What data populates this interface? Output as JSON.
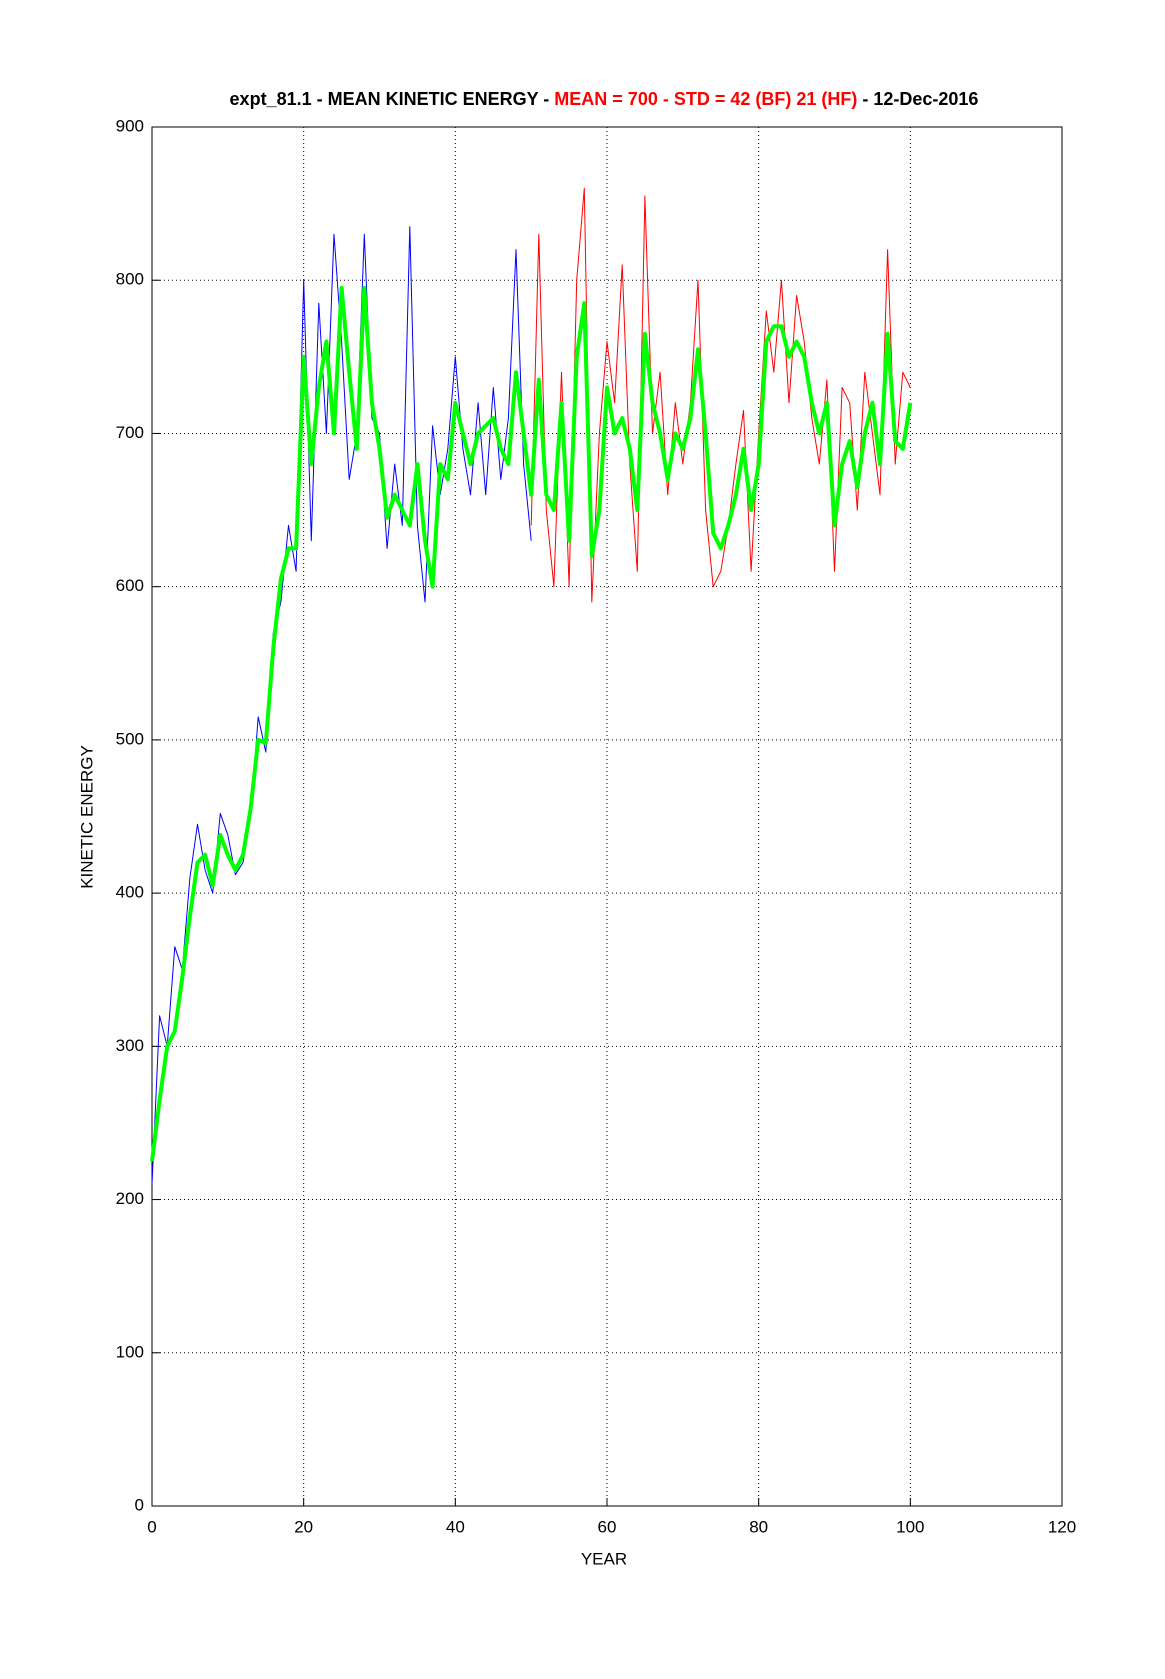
{
  "chart_data": {
    "type": "line",
    "title_parts": [
      {
        "text": "expt_81.1 - MEAN KINETIC ENERGY - ",
        "color": "#000000"
      },
      {
        "text": "MEAN =   700 - STD =   42 (BF)   21 (HF)",
        "color": "#ff0000"
      },
      {
        "text": " - 12-Dec-2016",
        "color": "#000000"
      }
    ],
    "x_label": "YEAR",
    "y_label": "KINETIC ENERGY",
    "xlim": [
      0,
      120
    ],
    "xticks": [
      0,
      20,
      40,
      60,
      80,
      100,
      120
    ],
    "ylim": [
      0,
      900
    ],
    "yticks": [
      0,
      100,
      200,
      300,
      400,
      500,
      600,
      700,
      800,
      900
    ],
    "grid": true,
    "series": [
      {
        "color": "#0000ff",
        "width": 1,
        "x": [
          0,
          1,
          2,
          3,
          4,
          5,
          6,
          7,
          8,
          9,
          10,
          11,
          12,
          13,
          14,
          15,
          16,
          17,
          18,
          19,
          20,
          21,
          22,
          23,
          24,
          25,
          26,
          27,
          28,
          29,
          30,
          31,
          32,
          33,
          34,
          35,
          36,
          37,
          38,
          39,
          40,
          41,
          42,
          43,
          44,
          45,
          46,
          47,
          48,
          49,
          50
        ],
        "values": [
          210,
          320,
          300,
          365,
          350,
          410,
          445,
          415,
          400,
          452,
          438,
          412,
          420,
          450,
          515,
          492,
          570,
          590,
          640,
          610,
          800,
          630,
          785,
          700,
          830,
          760,
          670,
          700,
          830,
          710,
          700,
          625,
          680,
          640,
          835,
          640,
          590,
          705,
          660,
          690,
          750,
          690,
          660,
          720,
          660,
          730,
          670,
          710,
          820,
          680,
          630
        ]
      },
      {
        "color": "#ff0000",
        "width": 1,
        "x": [
          50,
          51,
          52,
          53,
          54,
          55,
          56,
          57,
          58,
          59,
          60,
          61,
          62,
          63,
          64,
          65,
          66,
          67,
          68,
          69,
          70,
          71,
          72,
          73,
          74,
          75,
          76,
          77,
          78,
          79,
          80,
          81,
          82,
          83,
          84,
          85,
          86,
          87,
          88,
          89,
          90,
          91,
          92,
          93,
          94,
          95,
          96,
          97,
          98,
          99,
          100
        ],
        "values": [
          640,
          830,
          650,
          600,
          740,
          600,
          800,
          860,
          590,
          700,
          760,
          720,
          810,
          680,
          610,
          855,
          700,
          740,
          660,
          720,
          680,
          720,
          800,
          650,
          600,
          610,
          640,
          680,
          715,
          610,
          700,
          780,
          740,
          800,
          720,
          790,
          760,
          710,
          680,
          735,
          610,
          730,
          720,
          650,
          740,
          700,
          660,
          820,
          680,
          740,
          730
        ]
      },
      {
        "color": "#00ff00",
        "width": 4,
        "x": [
          0,
          1,
          2,
          3,
          4,
          5,
          6,
          7,
          8,
          9,
          10,
          11,
          12,
          13,
          14,
          15,
          16,
          17,
          18,
          19,
          20,
          21,
          22,
          23,
          24,
          25,
          26,
          27,
          28,
          29,
          30,
          31,
          32,
          33,
          34,
          35,
          36,
          37,
          38,
          39,
          40,
          41,
          42,
          43,
          44,
          45,
          46,
          47,
          48,
          49,
          50,
          51,
          52,
          53,
          54,
          55,
          56,
          57,
          58,
          59,
          60,
          61,
          62,
          63,
          64,
          65,
          66,
          67,
          68,
          69,
          70,
          71,
          72,
          73,
          74,
          75,
          76,
          77,
          78,
          79,
          80,
          81,
          82,
          83,
          84,
          85,
          86,
          87,
          88,
          89,
          90,
          91,
          92,
          93,
          94,
          95,
          96,
          97,
          98,
          99,
          100
        ],
        "values": [
          225,
          265,
          300,
          310,
          345,
          385,
          420,
          425,
          405,
          438,
          425,
          415,
          425,
          455,
          500,
          498,
          560,
          605,
          625,
          625,
          750,
          680,
          730,
          760,
          700,
          795,
          740,
          690,
          795,
          720,
          690,
          645,
          660,
          650,
          640,
          680,
          630,
          600,
          680,
          670,
          720,
          700,
          680,
          700,
          705,
          710,
          690,
          680,
          740,
          700,
          660,
          735,
          660,
          650,
          720,
          630,
          750,
          785,
          620,
          650,
          730,
          700,
          710,
          690,
          650,
          765,
          720,
          700,
          670,
          700,
          690,
          710,
          755,
          700,
          635,
          625,
          640,
          660,
          690,
          650,
          680,
          760,
          770,
          770,
          750,
          760,
          750,
          720,
          700,
          720,
          640,
          680,
          695,
          665,
          700,
          720,
          680,
          765,
          695,
          690,
          720
        ]
      }
    ]
  }
}
